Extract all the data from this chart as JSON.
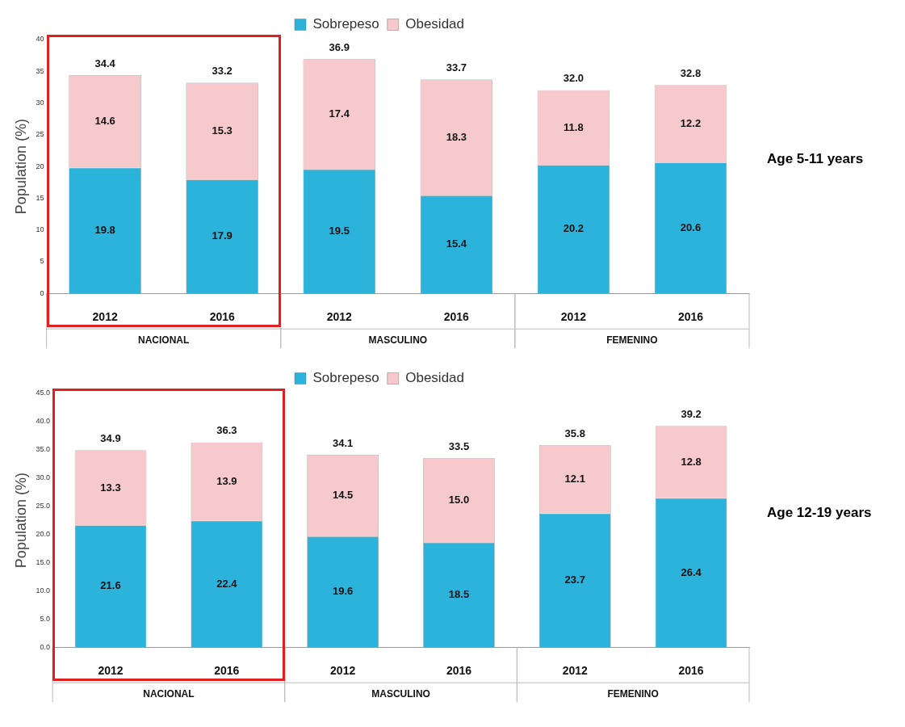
{
  "chart_data": [
    {
      "type": "bar",
      "stacked": true,
      "ylabel": "Population (%)",
      "legend": "top",
      "categories": [
        "2012",
        "2016",
        "2012",
        "2016",
        "2012",
        "2016"
      ],
      "ylim": [
        0,
        40
      ],
      "yticks": [
        0,
        5,
        10,
        15,
        20,
        25,
        30,
        35,
        40
      ],
      "series": [
        {
          "name": "Sobrepeso",
          "color": "#2bb3dc",
          "values": [
            19.8,
            17.9,
            19.5,
            15.4,
            20.2,
            20.6
          ],
          "value_labels": [
            "19.8",
            "17.9",
            "19.5",
            "15.4",
            "20.2",
            "20.6"
          ]
        },
        {
          "name": "Obesidad",
          "color": "#f6c9cc",
          "values": [
            14.6,
            15.3,
            17.4,
            18.3,
            11.8,
            12.2
          ],
          "value_labels": [
            "14.6",
            "15.3",
            "17.4",
            "18.3",
            "11.8",
            "12.2"
          ]
        }
      ],
      "totals": [
        "34.4",
        "33.2",
        "36.9",
        "33.7",
        "32.0",
        "32.8"
      ],
      "annotations": [
        "NACIONAL",
        "MASCULINO",
        "FEMENINO",
        "Age 5-11 years"
      ]
    },
    {
      "type": "bar",
      "stacked": true,
      "ylabel": "Population (%)",
      "legend": "top",
      "categories": [
        "2012",
        "2016",
        "2012",
        "2016",
        "2012",
        "2016"
      ],
      "ylim": [
        0,
        45
      ],
      "yticks": [
        {
          "value": 0,
          "label": "0.0"
        },
        {
          "value": 5,
          "label": "5.0"
        },
        {
          "value": 10,
          "label": "10.0"
        },
        {
          "value": 15,
          "label": "15.0"
        },
        {
          "value": 20,
          "label": "20.0"
        },
        {
          "value": 25,
          "label": "25.0"
        },
        {
          "value": 30,
          "label": "30.0"
        },
        {
          "value": 35,
          "label": "35.0"
        },
        {
          "value": 40,
          "label": "40.0"
        },
        {
          "value": 45,
          "label": "45.0"
        }
      ],
      "series": [
        {
          "name": "Sobrepeso",
          "color": "#2bb3dc",
          "values": [
            21.6,
            22.4,
            19.6,
            18.5,
            23.7,
            26.4
          ],
          "value_labels": [
            "21.6",
            "22.4",
            "19.6",
            "18.5",
            "23.7",
            "26.4"
          ]
        },
        {
          "name": "Obesidad",
          "color": "#f6c9cc",
          "values": [
            13.3,
            13.9,
            14.5,
            15.0,
            12.1,
            12.8
          ],
          "value_labels": [
            "13.3",
            "13.9",
            "14.5",
            "15.0",
            "12.1",
            "12.8"
          ]
        }
      ],
      "totals": [
        "34.9",
        "36.3",
        "34.1",
        "33.5",
        "35.8",
        "39.2"
      ],
      "annotations": [
        "NACIONAL",
        "MASCULINO",
        "FEMENINO",
        "Age 12-19 years"
      ]
    }
  ]
}
